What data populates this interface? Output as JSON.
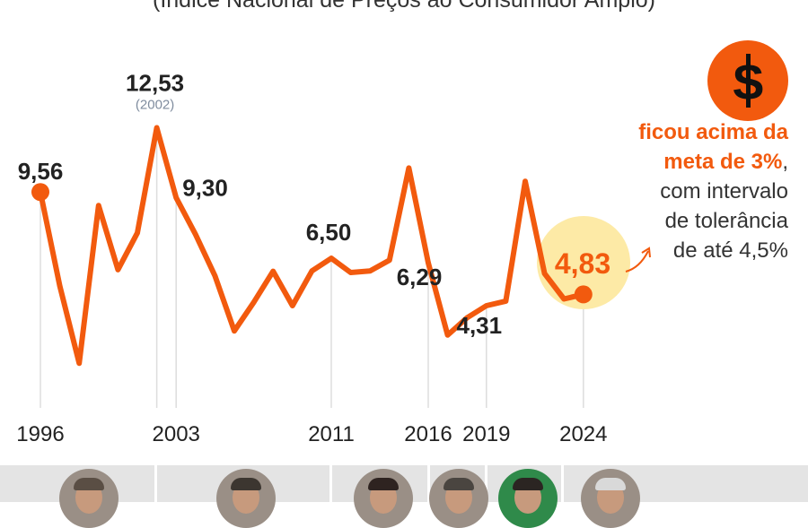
{
  "subtitle": "(Índice Nacional de Preços ao Consumidor Amplo)",
  "colors": {
    "line": "#f25a0e",
    "highlight_circle": "#fdeaa6",
    "grid": "#dddddd",
    "text": "#222222",
    "muted": "#7f8c9e"
  },
  "icon": "dollar-sign-icon",
  "note": {
    "line1": "ficou acima da",
    "line2_hl": "meta de 3%",
    "line2_rest": ",",
    "line3": "com intervalo",
    "line4": "de tolerância",
    "line5": "de até 4,5%"
  },
  "chart_data": {
    "type": "line",
    "x": [
      1996,
      1997,
      1998,
      1999,
      2000,
      2001,
      2002,
      2003,
      2004,
      2005,
      2006,
      2007,
      2008,
      2009,
      2010,
      2011,
      2012,
      2013,
      2014,
      2015,
      2016,
      2017,
      2018,
      2019,
      2020,
      2021,
      2022,
      2023,
      2024
    ],
    "series": [
      {
        "values": [
          9.56,
          5.22,
          1.65,
          8.94,
          5.97,
          7.67,
          12.53,
          9.3,
          7.6,
          5.69,
          3.14,
          4.46,
          5.9,
          4.31,
          5.91,
          6.5,
          5.84,
          5.91,
          6.41,
          10.67,
          6.29,
          2.95,
          3.75,
          4.31,
          4.52,
          10.06,
          5.79,
          4.62,
          4.83
        ]
      }
    ],
    "ylim": [
      0,
      14
    ],
    "x_tick_labels": [
      "1996",
      "2003",
      "2011",
      "2016",
      "2019",
      "2024"
    ],
    "gridline_years": [
      1996,
      2002,
      2003,
      2011,
      2016,
      2019,
      2024
    ],
    "annotations": [
      {
        "year": 1996,
        "label": "9,56"
      },
      {
        "year": 2002,
        "label": "12,53",
        "sublabel": "(2002)"
      },
      {
        "year": 2003,
        "label": "9,30"
      },
      {
        "year": 2011,
        "label": "6,50"
      },
      {
        "year": 2016,
        "label": "6,29"
      },
      {
        "year": 2019,
        "label": "4,31"
      },
      {
        "year": 2024,
        "label": "4,83",
        "highlight": true
      }
    ],
    "endpoints_marked": [
      1996,
      2024
    ]
  }
}
